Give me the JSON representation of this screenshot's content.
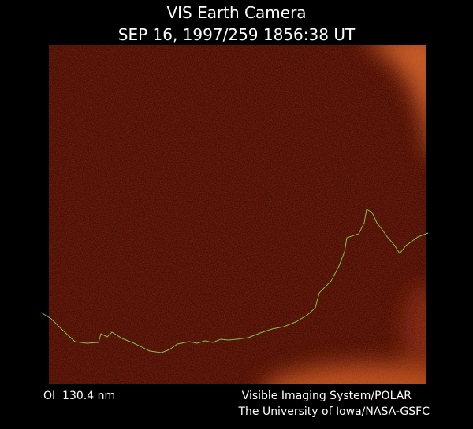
{
  "header": {
    "title": "VIS Earth Camera",
    "subtitle": "SEP 16, 1997/259 1856:38 UT"
  },
  "footer": {
    "wavelength": "OI  130.4 nm",
    "instrument": "Visible Imaging System/POLAR",
    "institution": "The University of Iowa/NASA-GSFC"
  }
}
